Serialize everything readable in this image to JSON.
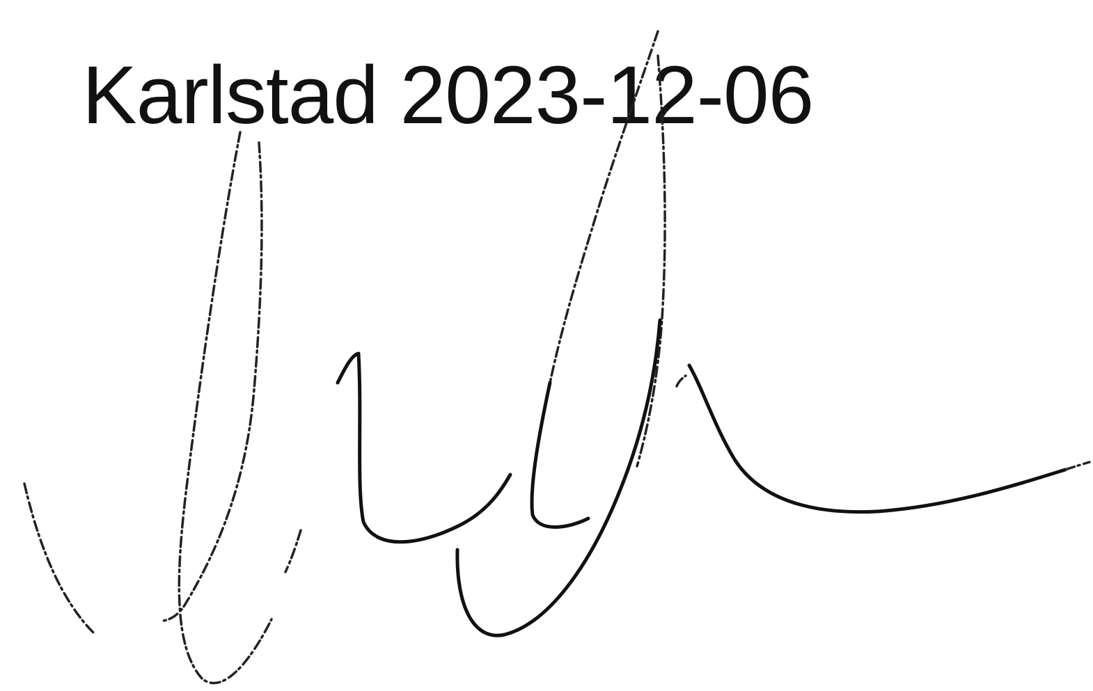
{
  "document": {
    "place_date": "Karlstad 2023-12-06"
  },
  "signature": {
    "ink_color": "#111111"
  }
}
